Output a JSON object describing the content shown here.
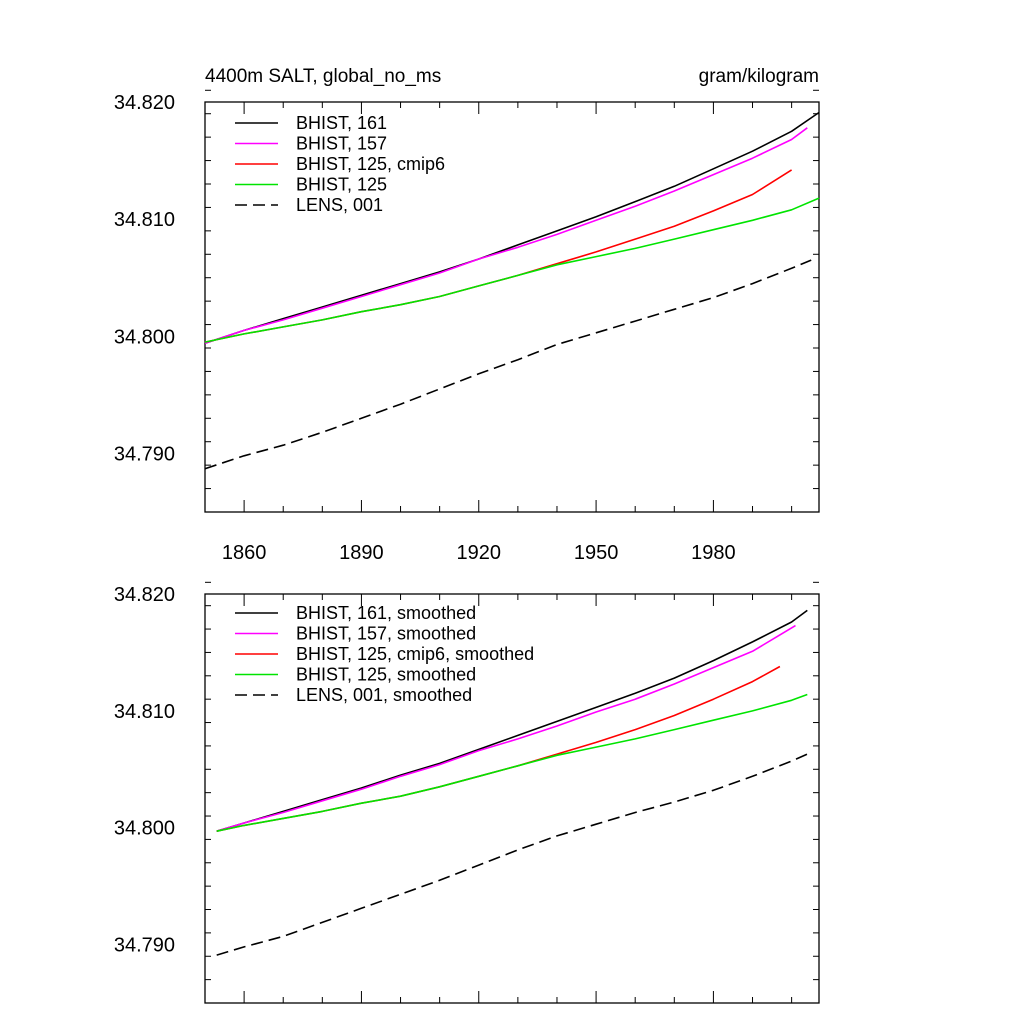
{
  "chart_data": [
    {
      "type": "line",
      "title_left": "4400m SALT, global_no_ms",
      "title_right": "gram/kilogram",
      "xlim": [
        1850,
        2007
      ],
      "ylim": [
        34.785,
        34.82
      ],
      "xticks": [
        1860,
        1890,
        1920,
        1950,
        1980
      ],
      "xtick_labels": [
        "1860",
        "1890",
        "1920",
        "1950",
        "1980"
      ],
      "yticks": [
        34.79,
        34.8,
        34.81,
        34.82
      ],
      "ytick_labels": [
        "34.790",
        "34.800",
        "34.810",
        "34.820"
      ],
      "series": [
        {
          "name": "BHIST, 161",
          "color": "#000000",
          "dash": "solid",
          "x": [
            1850,
            1860,
            1870,
            1880,
            1890,
            1900,
            1910,
            1920,
            1930,
            1940,
            1950,
            1960,
            1970,
            1980,
            1990,
            2000,
            2007
          ],
          "y": [
            34.7994,
            34.8005,
            34.8015,
            34.8025,
            34.8035,
            34.8045,
            34.8055,
            34.8066,
            34.8078,
            34.809,
            34.8102,
            34.8115,
            34.8128,
            34.8143,
            34.8158,
            34.8175,
            34.8191
          ]
        },
        {
          "name": "BHIST, 157",
          "color": "#ff00ff",
          "dash": "solid",
          "x": [
            1850,
            1860,
            1870,
            1880,
            1890,
            1900,
            1910,
            1920,
            1930,
            1940,
            1950,
            1960,
            1970,
            1980,
            1990,
            2000,
            2004
          ],
          "y": [
            34.7994,
            34.8005,
            34.8014,
            34.8024,
            34.8034,
            34.8044,
            34.8054,
            34.8066,
            34.8076,
            34.8087,
            34.8099,
            34.8111,
            34.8124,
            34.8138,
            34.8152,
            34.8168,
            34.8178
          ]
        },
        {
          "name": "BHIST, 125, cmip6",
          "color": "#ff0000",
          "dash": "solid",
          "x": [
            1850,
            1860,
            1870,
            1880,
            1890,
            1900,
            1910,
            1920,
            1930,
            1940,
            1950,
            1960,
            1970,
            1980,
            1990,
            2000
          ],
          "y": [
            34.7995,
            34.8002,
            34.8008,
            34.8014,
            34.8021,
            34.8027,
            34.8034,
            34.8043,
            34.8052,
            34.8062,
            34.8072,
            34.8083,
            34.8094,
            34.8107,
            34.8121,
            34.8142
          ]
        },
        {
          "name": "BHIST, 125",
          "color": "#00e400",
          "dash": "solid",
          "x": [
            1850,
            1860,
            1870,
            1880,
            1890,
            1900,
            1910,
            1920,
            1930,
            1940,
            1950,
            1960,
            1970,
            1980,
            1990,
            2000,
            2007
          ],
          "y": [
            34.7995,
            34.8002,
            34.8008,
            34.8014,
            34.8021,
            34.8027,
            34.8034,
            34.8043,
            34.8052,
            34.8061,
            34.8068,
            34.8075,
            34.8083,
            34.8091,
            34.8099,
            34.8108,
            34.8118
          ]
        },
        {
          "name": "LENS, 001",
          "color": "#000000",
          "dash": "dashed",
          "x": [
            1850,
            1860,
            1870,
            1880,
            1890,
            1900,
            1910,
            1920,
            1930,
            1940,
            1950,
            1960,
            1970,
            1980,
            1990,
            2000,
            2005
          ],
          "y": [
            34.7887,
            34.7898,
            34.7907,
            34.7918,
            34.793,
            34.7942,
            34.7955,
            34.7968,
            34.798,
            34.7993,
            34.8003,
            34.8013,
            34.8023,
            34.8033,
            34.8045,
            34.8058,
            34.8065
          ]
        }
      ]
    },
    {
      "type": "line",
      "xlim": [
        1850,
        2007
      ],
      "ylim": [
        34.785,
        34.82
      ],
      "xticks": [
        1860,
        1890,
        1920,
        1950,
        1980
      ],
      "yticks": [
        34.79,
        34.8,
        34.81,
        34.82
      ],
      "ytick_labels": [
        "34.790",
        "34.800",
        "34.810",
        "34.820"
      ],
      "series": [
        {
          "name": "BHIST, 161, smoothed",
          "color": "#000000",
          "dash": "solid",
          "x": [
            1853,
            1860,
            1870,
            1880,
            1890,
            1900,
            1910,
            1920,
            1930,
            1940,
            1950,
            1960,
            1970,
            1980,
            1990,
            2000,
            2004
          ],
          "y": [
            34.7997,
            34.8004,
            34.8014,
            34.8024,
            34.8034,
            34.8045,
            34.8055,
            34.8067,
            34.8079,
            34.8091,
            34.8103,
            34.8115,
            34.8128,
            34.8143,
            34.8159,
            34.8176,
            34.8186
          ]
        },
        {
          "name": "BHIST, 157, smoothed",
          "color": "#ff00ff",
          "dash": "solid",
          "x": [
            1853,
            1860,
            1870,
            1880,
            1890,
            1900,
            1910,
            1920,
            1930,
            1940,
            1950,
            1960,
            1970,
            1980,
            1990,
            2001
          ],
          "y": [
            34.7997,
            34.8004,
            34.8013,
            34.8023,
            34.8033,
            34.8044,
            34.8054,
            34.8066,
            34.8076,
            34.8087,
            34.8099,
            34.811,
            34.8123,
            34.8137,
            34.8151,
            34.8173
          ]
        },
        {
          "name": "BHIST, 125, cmip6, smoothed",
          "color": "#ff0000",
          "dash": "solid",
          "x": [
            1853,
            1860,
            1870,
            1880,
            1890,
            1900,
            1910,
            1920,
            1930,
            1940,
            1950,
            1960,
            1970,
            1980,
            1990,
            1997
          ],
          "y": [
            34.7997,
            34.8002,
            34.8008,
            34.8014,
            34.8021,
            34.8027,
            34.8035,
            34.8044,
            34.8053,
            34.8063,
            34.8073,
            34.8084,
            34.8096,
            34.811,
            34.8125,
            34.8138
          ]
        },
        {
          "name": "BHIST, 125, smoothed",
          "color": "#00e400",
          "dash": "solid",
          "x": [
            1853,
            1860,
            1870,
            1880,
            1890,
            1900,
            1910,
            1920,
            1930,
            1940,
            1950,
            1960,
            1970,
            1980,
            1990,
            2000,
            2004
          ],
          "y": [
            34.7997,
            34.8002,
            34.8008,
            34.8014,
            34.8021,
            34.8027,
            34.8035,
            34.8044,
            34.8053,
            34.8062,
            34.8069,
            34.8076,
            34.8084,
            34.8092,
            34.81,
            34.8109,
            34.8114
          ]
        },
        {
          "name": "LENS, 001, smoothed",
          "color": "#000000",
          "dash": "dashed",
          "x": [
            1853,
            1860,
            1870,
            1880,
            1890,
            1900,
            1910,
            1920,
            1930,
            1940,
            1950,
            1960,
            1970,
            1980,
            1990,
            2000,
            2004
          ],
          "y": [
            34.7891,
            34.7898,
            34.7907,
            34.7919,
            34.7931,
            34.7943,
            34.7955,
            34.7968,
            34.7981,
            34.7993,
            34.8003,
            34.8013,
            34.8022,
            34.8032,
            34.8044,
            34.8057,
            34.8063
          ]
        }
      ]
    }
  ]
}
